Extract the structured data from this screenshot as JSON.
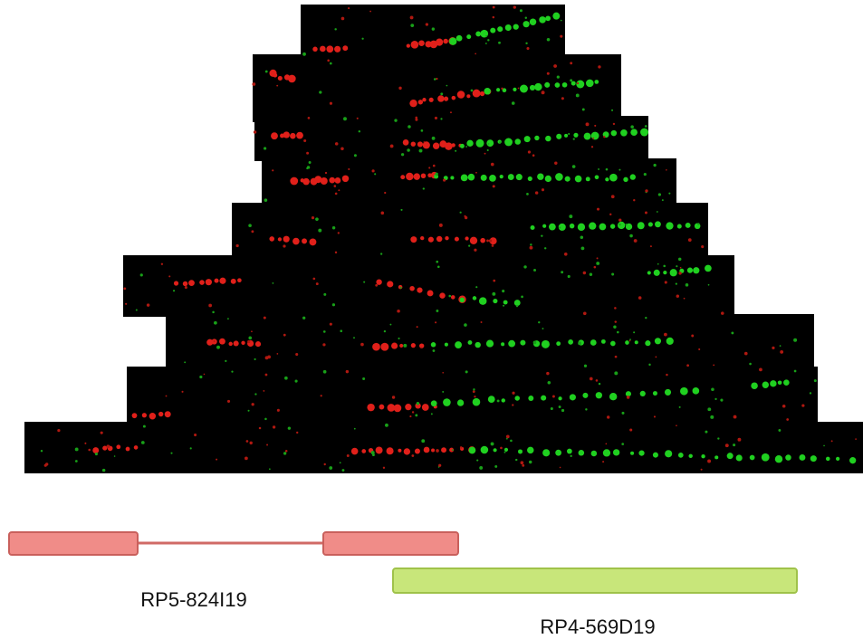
{
  "probes": [
    {
      "label": "RP5-824I19"
    },
    {
      "label": "RP4-569D19"
    }
  ]
}
